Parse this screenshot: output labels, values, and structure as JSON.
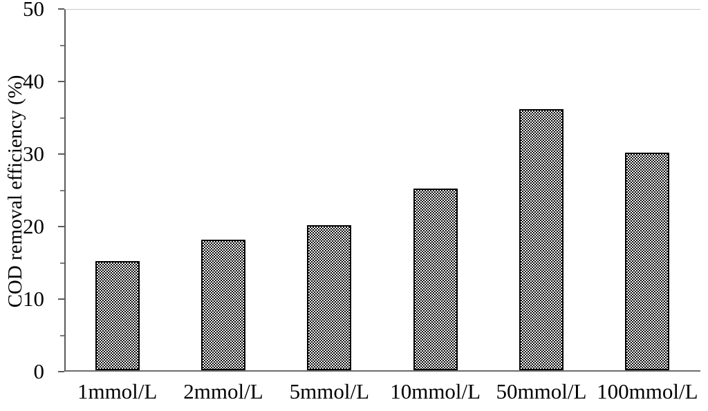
{
  "chart_data": {
    "type": "bar",
    "title": "",
    "xlabel": "",
    "ylabel": "COD removal efficiency (%)",
    "categories": [
      "1mmol/L",
      "2mmol/L",
      "5mmol/L",
      "10mmol/L",
      "50mmol/L",
      "100mmol/L"
    ],
    "values": [
      15,
      18,
      20,
      25,
      36,
      30
    ],
    "ylim": [
      0,
      50
    ],
    "yticks_major": [
      0,
      10,
      20,
      30,
      40,
      50
    ],
    "yticks_minor": [
      5,
      15,
      25,
      35,
      45
    ],
    "grid": "off",
    "legend": "none",
    "bar_fill_pattern": "small-checkerboard-black-white",
    "bar_border_color": "#000000",
    "axis_line_color": "#5a5a5a",
    "plot_top_border_color": "#c9c9c9",
    "text_color": "#000000",
    "background_color": "#ffffff"
  }
}
